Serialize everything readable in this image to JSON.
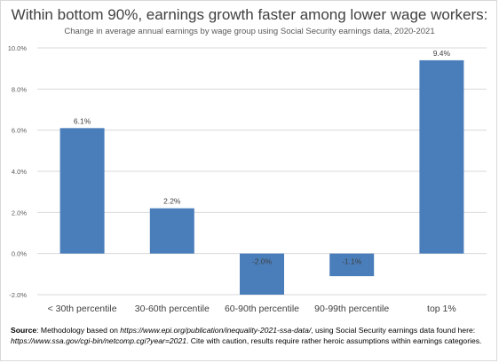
{
  "chart_data": {
    "type": "bar",
    "title": "Within bottom 90%, earnings growth faster among lower wage workers:",
    "subtitle": "Change in average annual earnings by wage group using Social Security earnings data, 2020-2021",
    "categories": [
      "< 30th percentile",
      "30-60th percentile",
      "60-90th percentile",
      "90-99th percentile",
      "top 1%"
    ],
    "values": [
      6.1,
      2.2,
      -2.0,
      -1.1,
      9.4
    ],
    "data_labels": [
      "6.1%",
      "2.2%",
      "-2.0%",
      "-1.1%",
      "9.4%"
    ],
    "ylim": [
      -2.0,
      10.0
    ],
    "y_ticks": [
      -2.0,
      0.0,
      2.0,
      4.0,
      6.0,
      8.0,
      10.0
    ],
    "y_tick_labels": [
      "-2.0%",
      "0.0%",
      "2.0%",
      "4.0%",
      "6.0%",
      "8.0%",
      "10.0%"
    ],
    "xlabel": "",
    "ylabel": "",
    "grid": true,
    "bar_color": "#4a7ebb"
  },
  "source": {
    "label": "Source",
    "text1": ": Methodology based on ",
    "link1": "https://www.epi.org/publication/inequality-2021-ssa-data/",
    "text2": ", using Social Security earnings data found here: ",
    "link2": "https://www.ssa.gov/cgi-bin/netcomp.cgi?year=2021",
    "text3": ". Cite with caution, results require rather heroic assumptions within earnings categories."
  }
}
